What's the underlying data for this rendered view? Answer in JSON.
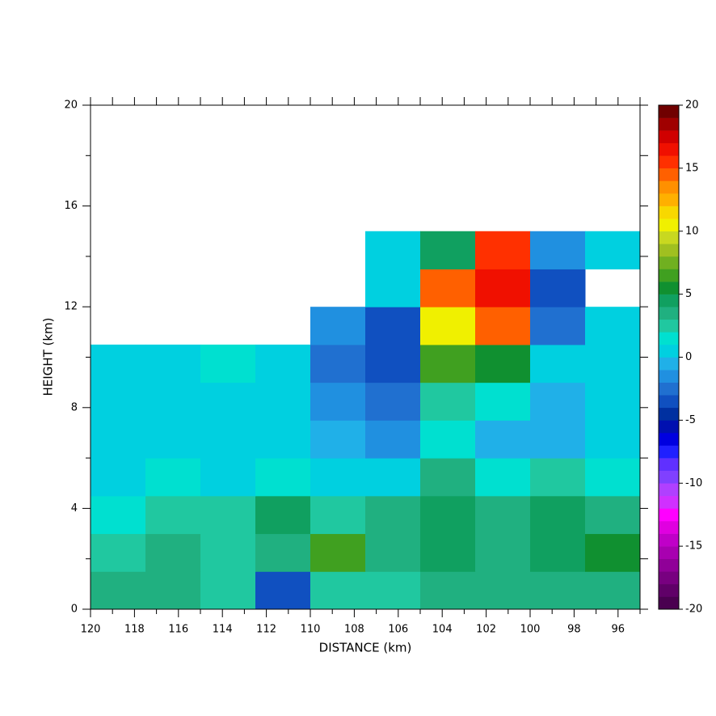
{
  "chart_data": {
    "type": "heatmap",
    "xlabel": "DISTANCE (km)",
    "ylabel": "HEIGHT (km)",
    "xlim": [
      120,
      95
    ],
    "ylim": [
      0,
      20
    ],
    "xticks": [
      120,
      118,
      116,
      114,
      112,
      110,
      108,
      106,
      104,
      102,
      100,
      98,
      96
    ],
    "xminorticks": [
      119,
      117,
      115,
      113,
      111,
      109,
      107,
      105,
      103,
      101,
      99,
      97,
      95
    ],
    "yticks": [
      0,
      4,
      8,
      12,
      16,
      20
    ],
    "yminorticks": [
      2,
      6,
      10,
      14,
      18
    ],
    "x_bins": [
      120,
      117.5,
      115,
      112.5,
      110,
      107.5,
      105,
      102.5,
      100,
      97.5,
      95
    ],
    "y_bins": [
      0,
      1.5,
      3,
      4.5,
      6,
      7.5,
      9,
      10.5,
      12,
      13.5,
      15
    ],
    "values": [
      [
        3,
        3,
        2,
        -4,
        2,
        2,
        3,
        3,
        3,
        3
      ],
      [
        2,
        3,
        2,
        3,
        6,
        3,
        4,
        3,
        4,
        5
      ],
      [
        1,
        2,
        2,
        4,
        2,
        3,
        4,
        3,
        4,
        3
      ],
      [
        0,
        1,
        0,
        1,
        0,
        0,
        3,
        1,
        2,
        1
      ],
      [
        0,
        0,
        0,
        0,
        -1,
        -2,
        1,
        -1,
        -1,
        0
      ],
      [
        0,
        0,
        0,
        0,
        -2,
        -3,
        2,
        1,
        -1,
        0
      ],
      [
        0,
        0,
        1,
        0,
        -3,
        -4,
        6,
        5,
        0,
        0
      ],
      [
        null,
        null,
        null,
        null,
        -2,
        -4,
        10,
        14,
        -3,
        0
      ],
      [
        null,
        null,
        null,
        null,
        null,
        0,
        14,
        16,
        -4,
        null
      ],
      [
        null,
        null,
        null,
        null,
        null,
        0,
        4,
        15,
        -2,
        0
      ]
    ],
    "clim": [
      -20,
      20
    ],
    "cticks": [
      -20,
      -15,
      -10,
      -5,
      0,
      5,
      10,
      15,
      20
    ],
    "colors": [
      "#4a0050",
      "#600068",
      "#780080",
      "#900098",
      "#a800b0",
      "#c000c8",
      "#e000e0",
      "#ff00ff",
      "#d030ff",
      "#b040ff",
      "#8040ff",
      "#6030ff",
      "#2020ff",
      "#0000e0",
      "#0010b0",
      "#0030a0",
      "#1050c0",
      "#2070d0",
      "#2090e0",
      "#20b0e8",
      "#00d0e0",
      "#00e0d0",
      "#20c8a0",
      "#20b080",
      "#10a060",
      "#109030",
      "#40a020",
      "#70b020",
      "#a0c020",
      "#c8d820",
      "#f0f000",
      "#f8d800",
      "#ffb000",
      "#ff9000",
      "#ff6000",
      "#ff3000",
      "#f01000",
      "#d00000",
      "#a00000",
      "#700000"
    ]
  }
}
